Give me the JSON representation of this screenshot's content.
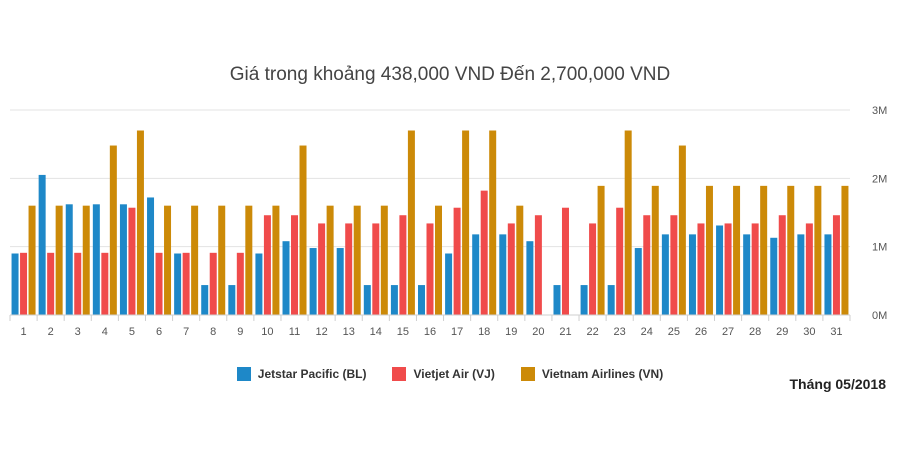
{
  "chart_data": {
    "type": "bar",
    "title": "Giá trong khoảng 438,000 VND Đến 2,700,000 VND",
    "categories": [
      "1",
      "2",
      "3",
      "4",
      "5",
      "6",
      "7",
      "8",
      "9",
      "10",
      "11",
      "12",
      "13",
      "14",
      "15",
      "16",
      "17",
      "18",
      "19",
      "20",
      "21",
      "22",
      "23",
      "24",
      "25",
      "26",
      "27",
      "28",
      "29",
      "30",
      "31"
    ],
    "series": [
      {
        "name": "Jetstar Pacific (BL)",
        "color": "#1e88c8",
        "values": [
          900000,
          2050000,
          1620000,
          1620000,
          1620000,
          1720000,
          900000,
          438000,
          438000,
          900000,
          1080000,
          980000,
          980000,
          438000,
          438000,
          438000,
          900000,
          1180000,
          1180000,
          1080000,
          438000,
          438000,
          438000,
          980000,
          1180000,
          1180000,
          1310000,
          1180000,
          1130000,
          1180000,
          1180000
        ]
      },
      {
        "name": "Vietjet Air (VJ)",
        "color": "#f04b4b",
        "values": [
          910000,
          910000,
          910000,
          910000,
          1570000,
          910000,
          910000,
          910000,
          910000,
          1460000,
          1460000,
          1340000,
          1340000,
          1340000,
          1460000,
          1340000,
          1570000,
          1820000,
          1340000,
          1460000,
          1570000,
          1340000,
          1570000,
          1460000,
          1460000,
          1340000,
          1340000,
          1340000,
          1460000,
          1340000,
          1460000
        ]
      },
      {
        "name": "Vietnam Airlines (VN)",
        "color": "#cc8a08",
        "values": [
          1600000,
          1600000,
          1600000,
          2480000,
          2700000,
          1600000,
          1600000,
          1600000,
          1600000,
          1600000,
          2480000,
          1600000,
          1600000,
          1600000,
          2700000,
          1600000,
          2700000,
          2700000,
          1600000,
          null,
          null,
          1890000,
          2700000,
          1890000,
          2480000,
          1890000,
          1890000,
          1890000,
          1890000,
          1890000,
          1890000
        ]
      }
    ],
    "ylim": [
      0,
      3000000
    ],
    "yticks": [
      0,
      1000000,
      2000000,
      3000000
    ],
    "ytick_labels": [
      "0M",
      "1M",
      "2M",
      "3M"
    ],
    "y_axis_position": "right",
    "grid": true,
    "legend_position": "bottom"
  },
  "footer": {
    "month_label": "Tháng 05/2018"
  }
}
